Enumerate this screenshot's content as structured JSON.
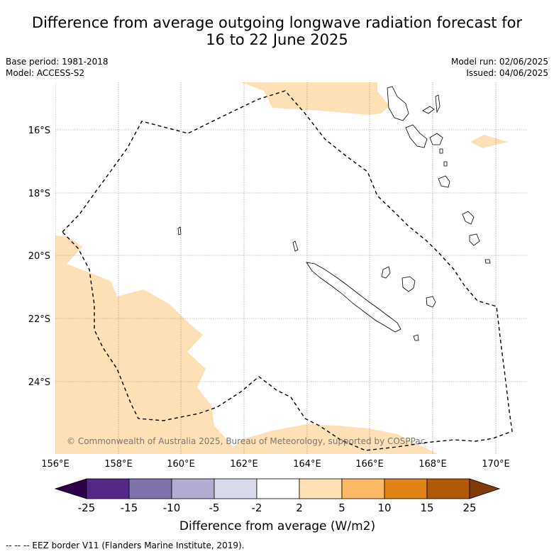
{
  "title_line1": "Difference from average outgoing longwave radiation forecast for",
  "title_line2": "16 to 22 June 2025",
  "base_period": "Base period: 1981-2018",
  "model": "Model: ACCESS-S2",
  "model_run": "Model run: 02/06/2025",
  "issued": "Issued: 04/06/2025",
  "copyright": "© Commonwealth of Australia 2025, Bureau of Meteorology, supported by COSPPac",
  "lon_labels": [
    "156°E",
    "158°E",
    "160°E",
    "162°E",
    "164°E",
    "166°E",
    "168°E",
    "170°E"
  ],
  "lat_labels": [
    "16°S",
    "18°S",
    "20°S",
    "22°S",
    "24°S"
  ],
  "colorbar": {
    "title": "Difference from average (W/m2)",
    "labels": [
      "-25",
      "-15",
      "-10",
      "-5",
      "-2",
      "2",
      "5",
      "10",
      "15",
      "25"
    ],
    "colors": [
      "#2d004b",
      "#542788",
      "#8073ac",
      "#b2abd2",
      "#d8daeb",
      "#ffffff",
      "#fee0b6",
      "#fdb863",
      "#e08214",
      "#b35806",
      "#7f3b08"
    ]
  },
  "footer": "--  --  -- EEZ border V11 (Flanders Marine Institute, 2019).",
  "shading_color": "#fee0b6"
}
